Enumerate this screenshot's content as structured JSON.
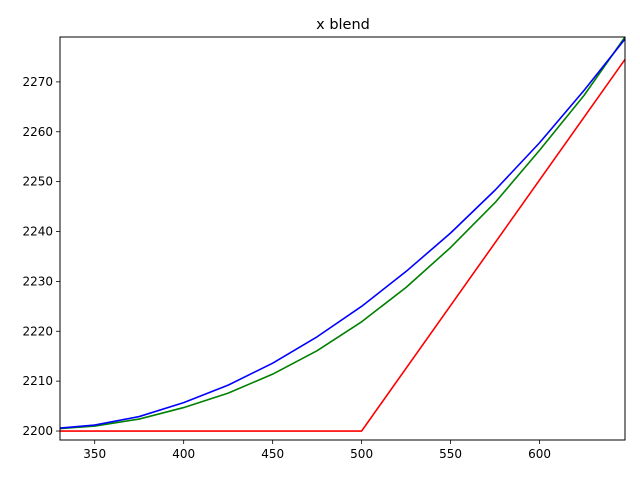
{
  "chart_data": {
    "type": "line",
    "title": "x blend",
    "xlabel": "",
    "ylabel": "",
    "xlim": [
      330.5,
      648
    ],
    "ylim": [
      2198.2,
      2279.0
    ],
    "xticks": [
      350,
      400,
      450,
      500,
      550,
      600
    ],
    "yticks": [
      2200,
      2210,
      2220,
      2230,
      2240,
      2250,
      2260,
      2270
    ],
    "grid": false,
    "colors": [
      "#ff0000",
      "#008000",
      "#0000ff"
    ],
    "series": [
      {
        "color": "#ff0000",
        "x": [
          330.5,
          500,
          648
        ],
        "y": [
          2200,
          2200,
          2274.5
        ]
      },
      {
        "color": "#008000",
        "x": [
          330.5,
          350,
          375,
          400,
          425,
          450,
          475,
          500,
          525,
          550,
          575,
          600,
          625,
          648
        ],
        "y": [
          2200.5,
          2201.0,
          2202.4,
          2204.7,
          2207.6,
          2211.4,
          2216.1,
          2221.9,
          2228.8,
          2236.8,
          2245.8,
          2256.3,
          2267.3,
          2279.0
        ]
      },
      {
        "color": "#0000ff",
        "x": [
          330.5,
          350,
          375,
          400,
          425,
          450,
          475,
          500,
          525,
          550,
          575,
          600,
          625,
          648
        ],
        "y": [
          2200.6,
          2201.2,
          2202.9,
          2205.7,
          2209.2,
          2213.6,
          2218.9,
          2225.0,
          2232.0,
          2239.7,
          2248.3,
          2257.8,
          2268.3,
          2278.6
        ]
      }
    ]
  }
}
